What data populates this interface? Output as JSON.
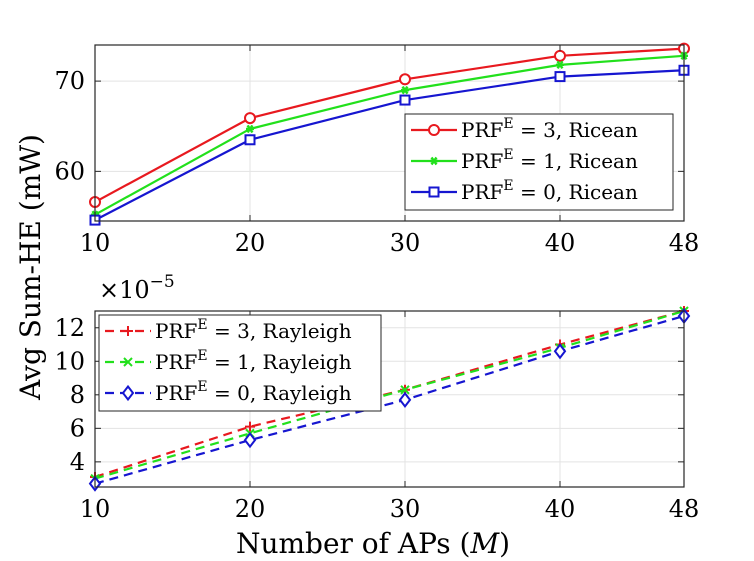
{
  "figure": {
    "ylabel": "Avg Sum-HE (mW)",
    "xlabel": "Number of APs (M)",
    "xlabel_main": "Number of APs (",
    "xlabel_var": "M",
    "xlabel_close": ")"
  },
  "chart_data": [
    {
      "type": "line",
      "x": [
        10,
        20,
        30,
        40,
        48
      ],
      "xticks": [
        "10",
        "20",
        "30",
        "40",
        "48"
      ],
      "xlim": [
        10,
        48
      ],
      "ylim": [
        54.5,
        74
      ],
      "yticks": [
        "60",
        "70"
      ],
      "grid": true,
      "legend_position": "bottom-right",
      "series": [
        {
          "name": "PRF^E = 3, Ricean",
          "legend_base": "PRF",
          "legend_sup": "E",
          "legend_rest": " = 3, Ricean",
          "color": "#e8191f",
          "marker": "circle",
          "dash": "solid",
          "values": [
            56.6,
            65.9,
            70.2,
            72.8,
            73.6
          ]
        },
        {
          "name": "PRF^E = 1, Ricean",
          "legend_base": "PRF",
          "legend_sup": "E",
          "legend_rest": " = 1, Ricean",
          "color": "#22e01c",
          "marker": "asterisk",
          "dash": "solid",
          "values": [
            55.2,
            64.7,
            69.0,
            71.8,
            72.8
          ]
        },
        {
          "name": "PRF^E = 0, Ricean",
          "legend_base": "PRF",
          "legend_sup": "E",
          "legend_rest": " = 0, Ricean",
          "color": "#1616d0",
          "marker": "square",
          "dash": "solid",
          "values": [
            54.6,
            63.5,
            67.9,
            70.5,
            71.2
          ]
        }
      ]
    },
    {
      "type": "line",
      "x": [
        10,
        20,
        30,
        40,
        48
      ],
      "xticks": [
        "10",
        "20",
        "30",
        "40",
        "48"
      ],
      "xlim": [
        10,
        48
      ],
      "ylim": [
        2.5,
        13
      ],
      "yticks": [
        "4",
        "6",
        "8",
        "10",
        "12"
      ],
      "y_multiplier_base": "×10",
      "y_multiplier_exp": "−5",
      "grid": true,
      "legend_position": "top-left",
      "series": [
        {
          "name": "PRF^E = 3, Rayleigh",
          "legend_base": "PRF",
          "legend_sup": "E",
          "legend_rest": " = 3, Rayleigh",
          "color": "#e8191f",
          "marker": "plus",
          "dash": "dashed",
          "values": [
            3.1,
            6.1,
            8.3,
            11.0,
            13.0
          ]
        },
        {
          "name": "PRF^E = 1, Rayleigh",
          "legend_base": "PRF",
          "legend_sup": "E",
          "legend_rest": " = 1, Rayleigh",
          "color": "#22e01c",
          "marker": "x",
          "dash": "dashed",
          "values": [
            3.0,
            5.7,
            8.3,
            10.8,
            13.0
          ]
        },
        {
          "name": "PRF^E = 0, Rayleigh",
          "legend_base": "PRF",
          "legend_sup": "E",
          "legend_rest": " = 0, Rayleigh",
          "color": "#1616d0",
          "marker": "diamond",
          "dash": "dashed",
          "values": [
            2.7,
            5.3,
            7.7,
            10.6,
            12.7
          ]
        }
      ]
    }
  ]
}
